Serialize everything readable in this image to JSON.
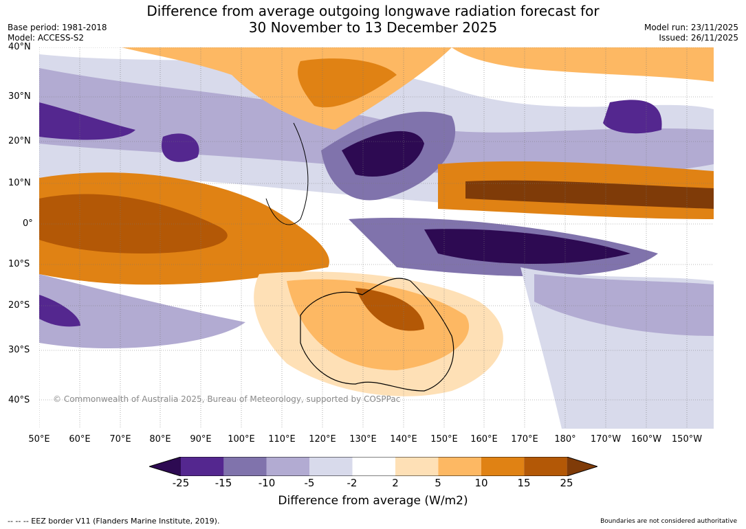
{
  "title_line1": "Difference from average outgoing longwave radiation forecast for",
  "title_line2": "30 November to 13 December 2025",
  "base_period": "Base period: 1981-2018",
  "model": "Model: ACCESS-S2",
  "model_run": "Model run: 23/11/2025",
  "issued": "Issued: 26/11/2025",
  "copyright": "© Commonwealth of Australia 2025, Bureau of Meteorology, supported by COSPPac",
  "lat_labels": [
    "40°N",
    "30°N",
    "20°N",
    "10°N",
    "0°",
    "10°S",
    "20°S",
    "30°S",
    "40°S"
  ],
  "lon_labels": [
    "50°E",
    "60°E",
    "70°E",
    "80°E",
    "90°E",
    "100°E",
    "110°E",
    "120°E",
    "130°E",
    "140°E",
    "150°E",
    "160°E",
    "170°E",
    "180°",
    "170°W",
    "160°W",
    "150°W"
  ],
  "colorbar": {
    "ticks": [
      "-25",
      "-15",
      "-10",
      "-5",
      "-2",
      "2",
      "5",
      "10",
      "15",
      "25"
    ],
    "colors": [
      "#2d0a52",
      "#54278f",
      "#8073ac",
      "#b2abd2",
      "#d8daeb",
      "#ffffff",
      "#fee0b6",
      "#fdb863",
      "#e08214",
      "#b35806",
      "#7f3b08"
    ],
    "label": "Difference from average (W/m2)"
  },
  "footer_left": "--  --  -- EEZ border V11 (Flanders Marine Institute, 2019).",
  "footer_right": "Boundaries are not considered authoritative"
}
